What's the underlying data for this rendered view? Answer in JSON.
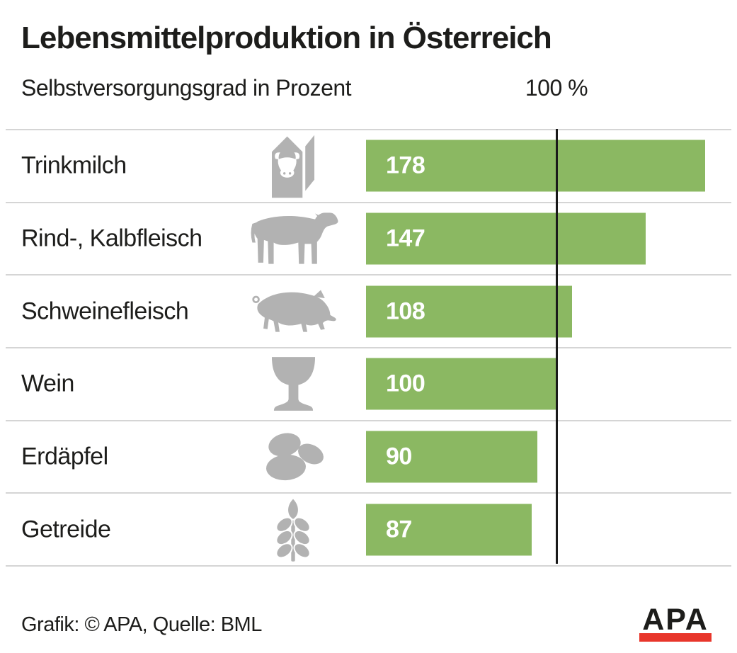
{
  "header": {
    "title": "Lebensmittelproduktion in Österreich",
    "subtitle": "Selbstversorgungsgrad in Prozent",
    "reference_label": "100 %"
  },
  "chart_data": {
    "type": "bar",
    "orientation": "horizontal",
    "title": "Lebensmittelproduktion in Österreich",
    "subtitle": "Selbstversorgungsgrad in Prozent",
    "unit": "Prozent",
    "reference_line": 100,
    "reference_line_label": "100 %",
    "xlim": [
      0,
      191
    ],
    "grid": false,
    "legend": false,
    "value_labels_inside_bars": true,
    "categories": [
      "Trinkmilch",
      "Rind-, Kalbfleisch",
      "Schweinefleisch",
      "Wein",
      "Erdäpfel",
      "Getreide"
    ],
    "values": [
      178,
      147,
      108,
      100,
      90,
      87
    ],
    "icons": [
      "milk-carton",
      "cow",
      "pig",
      "wine-glass",
      "potatoes",
      "wheat"
    ]
  },
  "footer": {
    "credit": "Grafik: © APA, Quelle: BML",
    "logo_text": "APA"
  },
  "colors": {
    "bar": "#8bb862",
    "icon": "#b2b2b2",
    "separator": "#d5d5d5",
    "reference_line": "#1a1a1a",
    "text": "#1d1d1b",
    "value_text": "#ffffff",
    "logo_red": "#e8362b"
  }
}
